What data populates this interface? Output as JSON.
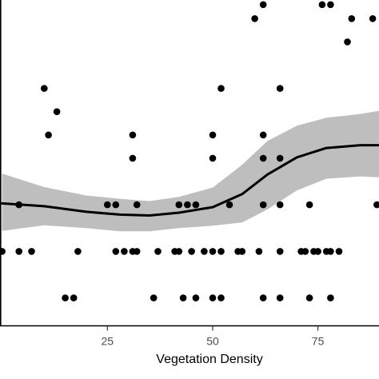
{
  "chart_data": {
    "type": "scatter",
    "title": "",
    "xlabel": "Vegetation Density",
    "ylabel": "",
    "xlim": [
      -0.5,
      89.5
    ],
    "ylim": [
      -0.6,
      6.4
    ],
    "x_ticks": [
      25,
      50,
      75
    ],
    "x_tick_labels": [
      "25",
      "50",
      "75"
    ],
    "grid": false,
    "legend": "none",
    "colors": {
      "points": "#000000",
      "smooth": "#000000",
      "band": "#bebebe",
      "axis": "#000000"
    },
    "points": [
      {
        "x": 0,
        "y": 1
      },
      {
        "x": 4,
        "y": 1
      },
      {
        "x": 7,
        "y": 1
      },
      {
        "x": 18,
        "y": 1
      },
      {
        "x": 27,
        "y": 1
      },
      {
        "x": 29,
        "y": 1
      },
      {
        "x": 31,
        "y": 1
      },
      {
        "x": 32,
        "y": 1
      },
      {
        "x": 37,
        "y": 1
      },
      {
        "x": 41,
        "y": 1
      },
      {
        "x": 42,
        "y": 1
      },
      {
        "x": 45,
        "y": 1
      },
      {
        "x": 48,
        "y": 1
      },
      {
        "x": 50,
        "y": 1
      },
      {
        "x": 52,
        "y": 1
      },
      {
        "x": 56,
        "y": 1
      },
      {
        "x": 57,
        "y": 1
      },
      {
        "x": 61,
        "y": 1
      },
      {
        "x": 66,
        "y": 1
      },
      {
        "x": 71,
        "y": 1
      },
      {
        "x": 72,
        "y": 1
      },
      {
        "x": 74,
        "y": 1
      },
      {
        "x": 75,
        "y": 1
      },
      {
        "x": 77,
        "y": 1
      },
      {
        "x": 78,
        "y": 1
      },
      {
        "x": 80,
        "y": 1
      },
      {
        "x": 4,
        "y": 2
      },
      {
        "x": 25,
        "y": 2
      },
      {
        "x": 27,
        "y": 2
      },
      {
        "x": 32,
        "y": 2
      },
      {
        "x": 42,
        "y": 2
      },
      {
        "x": 44,
        "y": 2
      },
      {
        "x": 46,
        "y": 2
      },
      {
        "x": 54,
        "y": 2
      },
      {
        "x": 62,
        "y": 2
      },
      {
        "x": 66,
        "y": 2
      },
      {
        "x": 73,
        "y": 2
      },
      {
        "x": 89,
        "y": 2
      },
      {
        "x": 31,
        "y": 3
      },
      {
        "x": 50,
        "y": 3
      },
      {
        "x": 62,
        "y": 3
      },
      {
        "x": 66,
        "y": 3
      },
      {
        "x": 11,
        "y": 3.5
      },
      {
        "x": 31,
        "y": 3.5
      },
      {
        "x": 50,
        "y": 3.5
      },
      {
        "x": 62,
        "y": 3.5
      },
      {
        "x": 13,
        "y": 4
      },
      {
        "x": 10,
        "y": 4.5
      },
      {
        "x": 52,
        "y": 4.5
      },
      {
        "x": 66,
        "y": 4.5
      },
      {
        "x": 82,
        "y": 5.5
      },
      {
        "x": 60,
        "y": 6
      },
      {
        "x": 83,
        "y": 6
      },
      {
        "x": 88,
        "y": 6
      },
      {
        "x": 62,
        "y": 6.3
      },
      {
        "x": 76,
        "y": 6.3
      },
      {
        "x": 78,
        "y": 6.3
      },
      {
        "x": 15,
        "y": 0
      },
      {
        "x": 17,
        "y": 0
      },
      {
        "x": 36,
        "y": 0
      },
      {
        "x": 43,
        "y": 0
      },
      {
        "x": 46,
        "y": 0
      },
      {
        "x": 50,
        "y": 0
      },
      {
        "x": 52,
        "y": 0
      },
      {
        "x": 62,
        "y": 0
      },
      {
        "x": 66,
        "y": 0
      },
      {
        "x": 73,
        "y": 0
      },
      {
        "x": 78,
        "y": 0
      }
    ],
    "smooth": [
      {
        "x": 0,
        "y": 2.03
      },
      {
        "x": 10,
        "y": 1.97
      },
      {
        "x": 20,
        "y": 1.85
      },
      {
        "x": 28,
        "y": 1.79
      },
      {
        "x": 35,
        "y": 1.77
      },
      {
        "x": 42,
        "y": 1.83
      },
      {
        "x": 50,
        "y": 1.95
      },
      {
        "x": 57,
        "y": 2.23
      },
      {
        "x": 63,
        "y": 2.65
      },
      {
        "x": 70,
        "y": 3.02
      },
      {
        "x": 77,
        "y": 3.22
      },
      {
        "x": 85,
        "y": 3.28
      },
      {
        "x": 89.5,
        "y": 3.28
      }
    ],
    "band_upper": [
      {
        "x": 0,
        "y": 2.67
      },
      {
        "x": 10,
        "y": 2.38
      },
      {
        "x": 20,
        "y": 2.2
      },
      {
        "x": 28,
        "y": 2.13
      },
      {
        "x": 35,
        "y": 2.08
      },
      {
        "x": 42,
        "y": 2.17
      },
      {
        "x": 50,
        "y": 2.37
      },
      {
        "x": 57,
        "y": 2.86
      },
      {
        "x": 63,
        "y": 3.37
      },
      {
        "x": 70,
        "y": 3.7
      },
      {
        "x": 77,
        "y": 3.87
      },
      {
        "x": 85,
        "y": 3.95
      },
      {
        "x": 89.5,
        "y": 4.02
      }
    ],
    "band_lower": [
      {
        "x": 0,
        "y": 1.44
      },
      {
        "x": 10,
        "y": 1.56
      },
      {
        "x": 20,
        "y": 1.5
      },
      {
        "x": 28,
        "y": 1.43
      },
      {
        "x": 35,
        "y": 1.43
      },
      {
        "x": 42,
        "y": 1.5
      },
      {
        "x": 50,
        "y": 1.55
      },
      {
        "x": 57,
        "y": 1.62
      },
      {
        "x": 63,
        "y": 1.9
      },
      {
        "x": 70,
        "y": 2.31
      },
      {
        "x": 77,
        "y": 2.56
      },
      {
        "x": 85,
        "y": 2.61
      },
      {
        "x": 89.5,
        "y": 2.59
      }
    ]
  }
}
